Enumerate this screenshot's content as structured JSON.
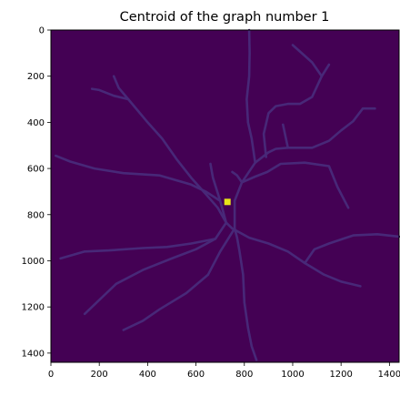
{
  "chart_data": {
    "type": "heatmap",
    "title": "Centroid of the graph number 1",
    "xlabel": "",
    "ylabel": "",
    "xlim": [
      0,
      1440
    ],
    "ylim": [
      1440,
      0
    ],
    "x_ticks": [
      0,
      200,
      400,
      600,
      800,
      1000,
      1200,
      1400
    ],
    "y_ticks": [
      0,
      200,
      400,
      600,
      800,
      1000,
      1200,
      1400
    ],
    "colormap": "viridis",
    "colors": {
      "background": "#440154",
      "vessel": "#482878",
      "centroid": "#e6e419"
    },
    "centroid": {
      "x": 730,
      "y": 745
    },
    "vessel_paths": [
      [
        [
          850,
          1430
        ],
        [
          830,
          1370
        ],
        [
          815,
          1290
        ],
        [
          800,
          1180
        ],
        [
          795,
          1060
        ],
        [
          780,
          960
        ],
        [
          770,
          900
        ],
        [
          760,
          860
        ]
      ],
      [
        [
          725,
          835
        ],
        [
          750,
          860
        ],
        [
          820,
          900
        ],
        [
          900,
          925
        ],
        [
          980,
          960
        ],
        [
          1050,
          1010
        ],
        [
          1130,
          1060
        ],
        [
          1200,
          1090
        ],
        [
          1280,
          1110
        ]
      ],
      [
        [
          1050,
          1010
        ],
        [
          1090,
          950
        ],
        [
          1150,
          925
        ],
        [
          1250,
          890
        ],
        [
          1350,
          885
        ],
        [
          1440,
          895
        ]
      ],
      [
        [
          760,
          860
        ],
        [
          760,
          740
        ],
        [
          790,
          660
        ],
        [
          845,
          575
        ],
        [
          900,
          530
        ],
        [
          930,
          515
        ],
        [
          980,
          510
        ],
        [
          1080,
          510
        ],
        [
          1150,
          480
        ],
        [
          1200,
          435
        ],
        [
          1250,
          395
        ],
        [
          1290,
          340
        ],
        [
          1340,
          340
        ]
      ],
      [
        [
          980,
          510
        ],
        [
          970,
          460
        ],
        [
          960,
          410
        ]
      ],
      [
        [
          890,
          550
        ],
        [
          880,
          450
        ],
        [
          900,
          360
        ],
        [
          930,
          330
        ],
        [
          980,
          320
        ],
        [
          1030,
          320
        ],
        [
          1080,
          290
        ],
        [
          1120,
          200
        ],
        [
          1080,
          140
        ],
        [
          1000,
          65
        ]
      ],
      [
        [
          1120,
          200
        ],
        [
          1150,
          150
        ]
      ],
      [
        [
          845,
          575
        ],
        [
          830,
          470
        ],
        [
          815,
          400
        ],
        [
          810,
          300
        ],
        [
          820,
          200
        ],
        [
          822,
          100
        ],
        [
          820,
          0
        ]
      ],
      [
        [
          790,
          660
        ],
        [
          845,
          635
        ],
        [
          895,
          615
        ],
        [
          950,
          580
        ],
        [
          1050,
          575
        ],
        [
          1150,
          590
        ],
        [
          1185,
          680
        ],
        [
          1230,
          770
        ]
      ],
      [
        [
          790,
          660
        ],
        [
          770,
          630
        ],
        [
          750,
          615
        ]
      ],
      [
        [
          725,
          835
        ],
        [
          700,
          740
        ],
        [
          670,
          640
        ],
        [
          660,
          580
        ]
      ],
      [
        [
          725,
          835
        ],
        [
          690,
          770
        ],
        [
          640,
          710
        ],
        [
          580,
          640
        ],
        [
          520,
          560
        ],
        [
          460,
          470
        ],
        [
          400,
          400
        ],
        [
          320,
          300
        ],
        [
          260,
          285
        ],
        [
          200,
          260
        ],
        [
          170,
          255
        ]
      ],
      [
        [
          320,
          300
        ],
        [
          280,
          250
        ],
        [
          260,
          200
        ]
      ],
      [
        [
          700,
          740
        ],
        [
          640,
          700
        ],
        [
          580,
          670
        ],
        [
          450,
          630
        ],
        [
          300,
          620
        ],
        [
          180,
          600
        ],
        [
          80,
          570
        ],
        [
          20,
          545
        ]
      ],
      [
        [
          725,
          835
        ],
        [
          680,
          905
        ],
        [
          600,
          950
        ],
        [
          500,
          990
        ],
        [
          380,
          1040
        ],
        [
          270,
          1100
        ],
        [
          140,
          1230
        ]
      ],
      [
        [
          680,
          905
        ],
        [
          580,
          925
        ],
        [
          480,
          940
        ],
        [
          380,
          945
        ],
        [
          240,
          955
        ],
        [
          140,
          960
        ],
        [
          40,
          990
        ]
      ],
      [
        [
          760,
          860
        ],
        [
          700,
          960
        ],
        [
          650,
          1060
        ],
        [
          560,
          1140
        ],
        [
          450,
          1210
        ],
        [
          380,
          1260
        ],
        [
          300,
          1300
        ]
      ]
    ]
  }
}
